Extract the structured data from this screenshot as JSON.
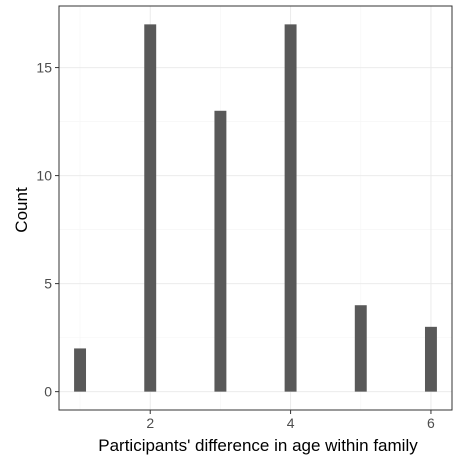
{
  "chart_data": {
    "type": "bar",
    "title": "",
    "xlabel": "Participants' difference in age within family",
    "ylabel": "Count",
    "x": [
      1,
      2,
      3,
      4,
      5,
      6
    ],
    "values": [
      2,
      17,
      13,
      17,
      4,
      3
    ],
    "xlim": [
      0.7,
      6.3
    ],
    "ylim": [
      -0.85,
      17.85
    ],
    "xticks": [
      2,
      4,
      6
    ],
    "yticks": [
      0,
      5,
      10,
      15
    ],
    "bar_width_units": 0.17,
    "grid": true,
    "theme": "bw",
    "colors": {
      "bar": "#595959",
      "grid_major": "#ebebeb",
      "grid_minor": "#f5f5f5",
      "panel_border": "#333333"
    }
  }
}
